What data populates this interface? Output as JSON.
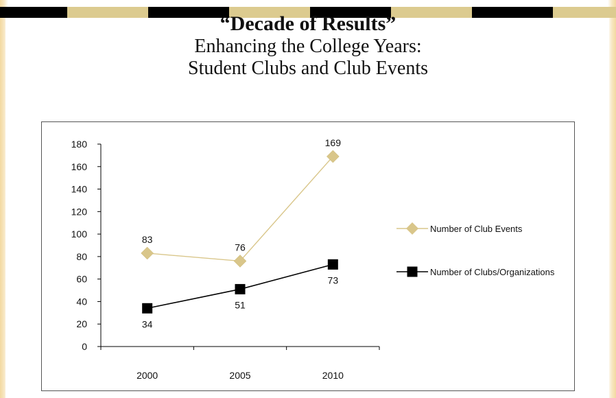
{
  "title": {
    "main": "“Decade of Results”",
    "line2": "Enhancing the College Years:",
    "line3": "Student Clubs and Club Events"
  },
  "colors": {
    "black": "#000000",
    "tan": "#d9c68a",
    "tan_dark": "#c9b66f",
    "stripe_tan": "#dccb8f"
  },
  "chart_data": {
    "type": "line",
    "x": [
      "2000",
      "2005",
      "2010"
    ],
    "ylim": [
      0,
      180
    ],
    "yticks": [
      0,
      20,
      40,
      60,
      80,
      100,
      120,
      140,
      160,
      180
    ],
    "grid": false,
    "legend_position": "right",
    "series": [
      {
        "name": "Number of Club Events",
        "values": [
          83,
          76,
          169
        ],
        "labels": [
          "83",
          "76",
          "169"
        ],
        "color": "#d9c68a",
        "marker": "diamond"
      },
      {
        "name": "Number of Clubs/Organizations",
        "values": [
          34,
          51,
          73
        ],
        "labels": [
          "34",
          "51",
          "73"
        ],
        "color": "#000000",
        "marker": "square"
      }
    ]
  }
}
